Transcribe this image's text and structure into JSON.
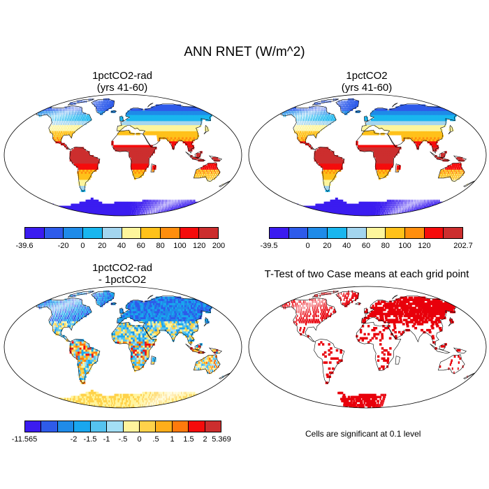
{
  "figure": {
    "title": "ANN RNET (W/m^2)"
  },
  "panels": {
    "p1": {
      "title_line1": "1pctCO2-rad",
      "title_line2": "(yrs 41-60)"
    },
    "p2": {
      "title_line1": "1pctCO2",
      "title_line2": "(yrs 41-60)"
    },
    "p3": {
      "title_line1": "1pctCO2-rad",
      "title_line2": "- 1pctCO2"
    },
    "p4": {
      "title": "T-Test of two Case means at each grid point",
      "note": "Cells are significant at 0.1 level",
      "sig_color": "#e8000b"
    }
  },
  "colorbars": {
    "cb1": {
      "colors": [
        "#3b1cf0",
        "#2e5bea",
        "#1f8be8",
        "#19b6ef",
        "#a3d5ef",
        "#fdf59c",
        "#ffc11a",
        "#ff8e0d",
        "#f50c0c",
        "#cc2e2e"
      ],
      "labels": [
        "-39.6",
        "-20",
        "0",
        "20",
        "40",
        "60",
        "80",
        "100",
        "120",
        "200"
      ]
    },
    "cb2": {
      "colors": [
        "#3b1cf0",
        "#2e5bea",
        "#1f8be8",
        "#19b6ef",
        "#a3d5ef",
        "#fdf59c",
        "#ffc11a",
        "#ff8e0d",
        "#f50c0c",
        "#cc2e2e"
      ],
      "labels": [
        "-39.5",
        "0",
        "20",
        "40",
        "60",
        "80",
        "100",
        "120",
        "202.7"
      ]
    },
    "cb3": {
      "colors": [
        "#3b1cf0",
        "#2e5bea",
        "#1f8be8",
        "#19a7ef",
        "#55c3ef",
        "#a3dff5",
        "#fff49c",
        "#ffd24a",
        "#ffae1a",
        "#ff7a0d",
        "#f50c0c",
        "#cc2e2e"
      ],
      "labels": [
        "-11.565",
        "-2",
        "-1.5",
        "-1",
        "-.5",
        "0",
        ".5",
        "1",
        "1.5",
        "2",
        "5.369"
      ]
    }
  },
  "map_colors": {
    "ocean": "#ffffff",
    "antarctica": "#3b1cf0",
    "greenland": "#2e5bea"
  }
}
